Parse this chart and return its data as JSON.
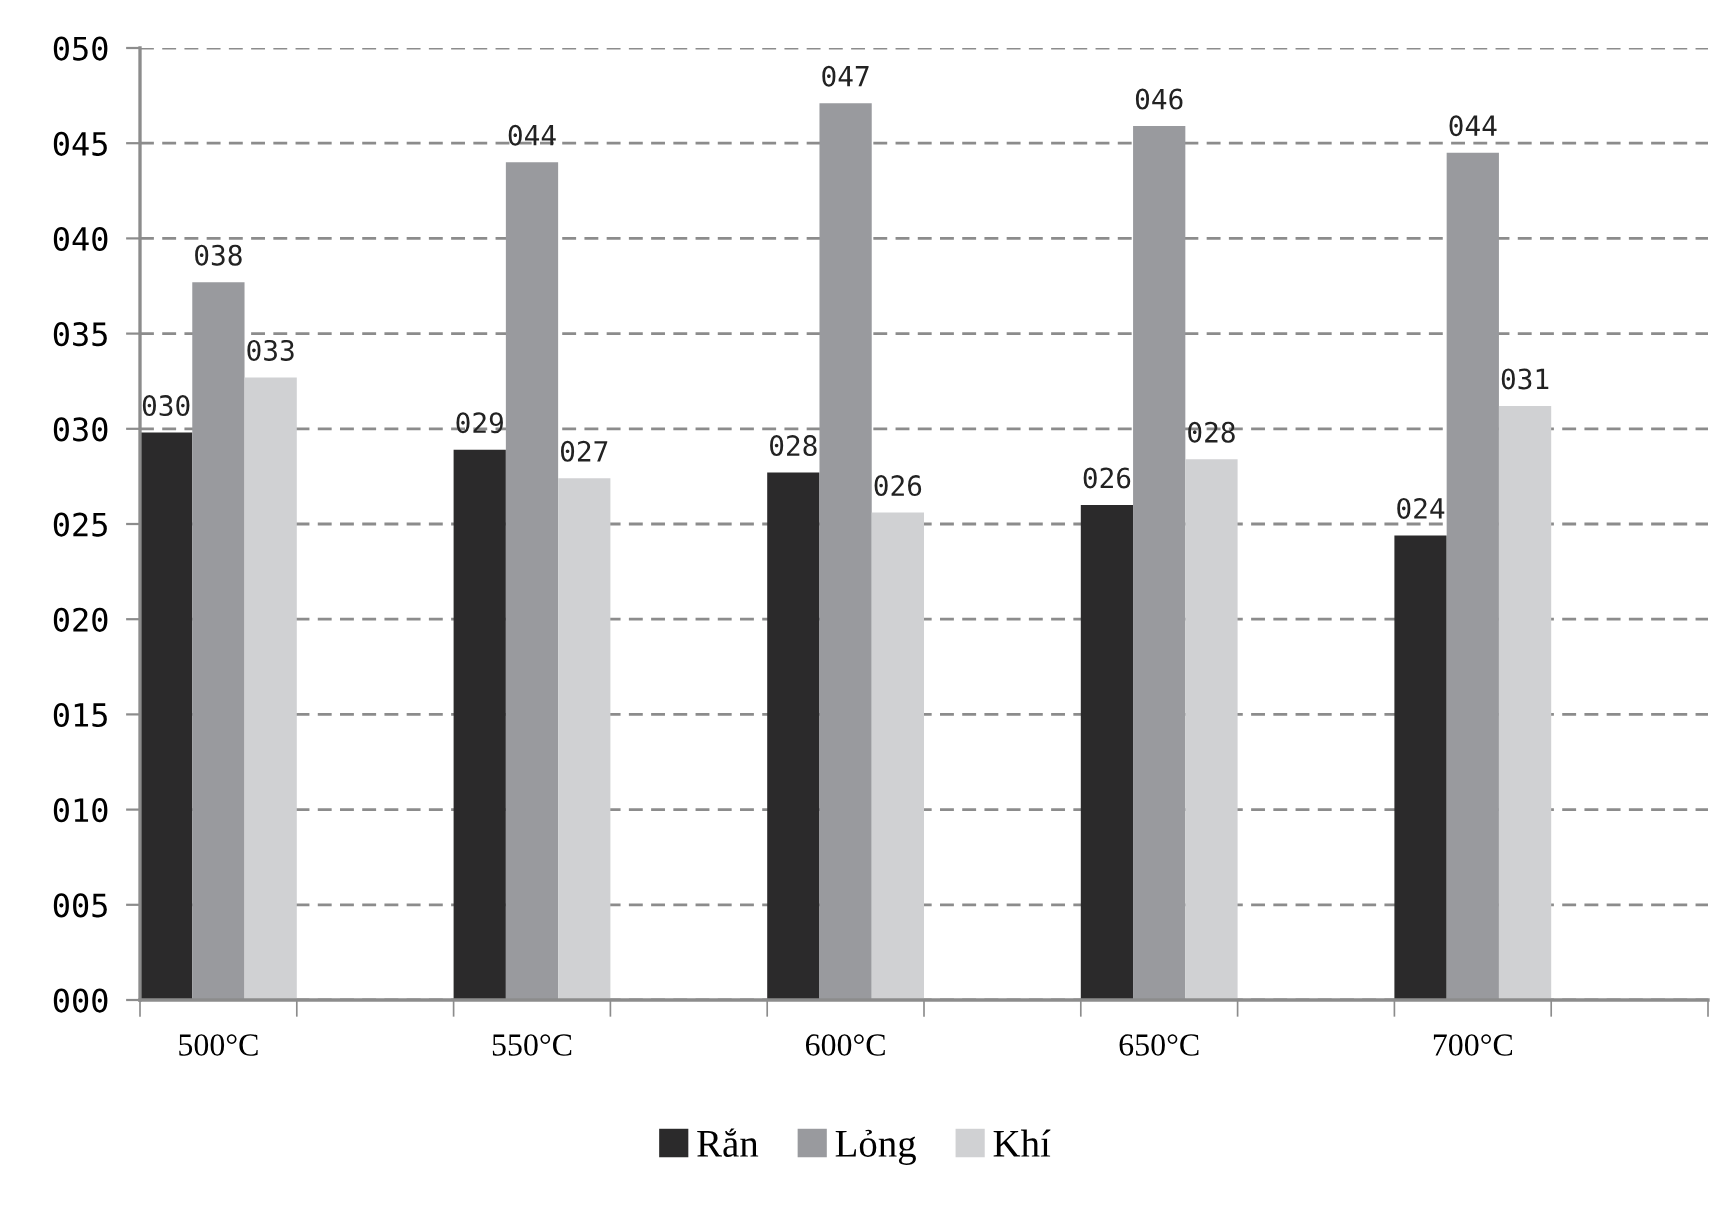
{
  "chart_data": {
    "type": "bar",
    "categories": [
      "500°C",
      null,
      "550°C",
      null,
      "600°C",
      null,
      "650°C",
      null,
      "700°C",
      null
    ],
    "series": [
      {
        "name": "Rắn",
        "color": "#2b2a2b",
        "values": [
          29.8,
          null,
          28.9,
          null,
          27.7,
          null,
          26.0,
          null,
          24.4,
          null
        ],
        "value_labels": [
          "030",
          null,
          "029",
          null,
          "028",
          null,
          "026",
          null,
          "024",
          null
        ]
      },
      {
        "name": "Lỏng",
        "color": "#999a9e",
        "values": [
          37.7,
          null,
          44.0,
          null,
          47.1,
          null,
          45.9,
          null,
          44.5,
          null
        ],
        "value_labels": [
          "038",
          null,
          "044",
          null,
          "047",
          null,
          "046",
          null,
          "044",
          null
        ]
      },
      {
        "name": "Khí",
        "color": "#d0d1d3",
        "values": [
          32.7,
          null,
          27.4,
          null,
          25.6,
          null,
          28.4,
          null,
          31.2,
          null
        ],
        "value_labels": [
          "033",
          null,
          "027",
          null,
          "026",
          null,
          "028",
          null,
          "031",
          null
        ]
      }
    ],
    "ylim": [
      0,
      50
    ],
    "yticks": [
      {
        "value": 0,
        "label": "000"
      },
      {
        "value": 5,
        "label": "005"
      },
      {
        "value": 10,
        "label": "010"
      },
      {
        "value": 15,
        "label": "015"
      },
      {
        "value": 20,
        "label": "020"
      },
      {
        "value": 25,
        "label": "025"
      },
      {
        "value": 30,
        "label": "030"
      },
      {
        "value": 35,
        "label": "035"
      },
      {
        "value": 40,
        "label": "040"
      },
      {
        "value": 45,
        "label": "045"
      },
      {
        "value": 50,
        "label": "050"
      }
    ],
    "grid": "y",
    "legend": "bottom"
  }
}
